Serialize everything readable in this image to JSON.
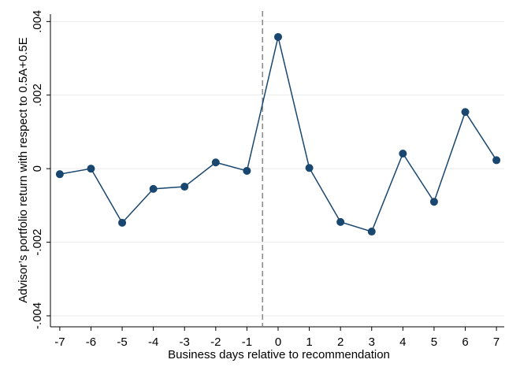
{
  "chart_data": {
    "type": "line",
    "x_label": "Business days relative to recommendation",
    "y_label": "Advisor’s portfolio return with respect to 0.5A+0.5E",
    "x": [
      -7,
      -6,
      -5,
      -4,
      -3,
      -2,
      -1,
      0,
      1,
      2,
      3,
      4,
      5,
      6,
      7
    ],
    "series": [
      {
        "color": "#1a476f",
        "values": [
          -0.00015,
          0,
          -0.00147,
          -0.00055,
          -0.00049,
          0.00017,
          -6e-05,
          0.00358,
          2e-05,
          -0.00145,
          -0.00171,
          0.00041,
          -0.0009,
          0.00154,
          0.00023
        ]
      }
    ],
    "xlim": [
      -7.3,
      7.25
    ],
    "xticks": [
      -7,
      -6,
      -5,
      -4,
      -3,
      -2,
      -1,
      0,
      1,
      2,
      3,
      4,
      5,
      6,
      7
    ],
    "ylim": [
      -0.0043,
      0.0042
    ],
    "yticks": [
      {
        "value": -0.004,
        "label": "-.004"
      },
      {
        "value": -0.002,
        "label": "-.002"
      },
      0,
      {
        "value": 0.002,
        "label": ".002"
      },
      {
        "value": 0.004,
        "label": ".004"
      }
    ],
    "grid": true,
    "reference_line_x": -0.5
  }
}
